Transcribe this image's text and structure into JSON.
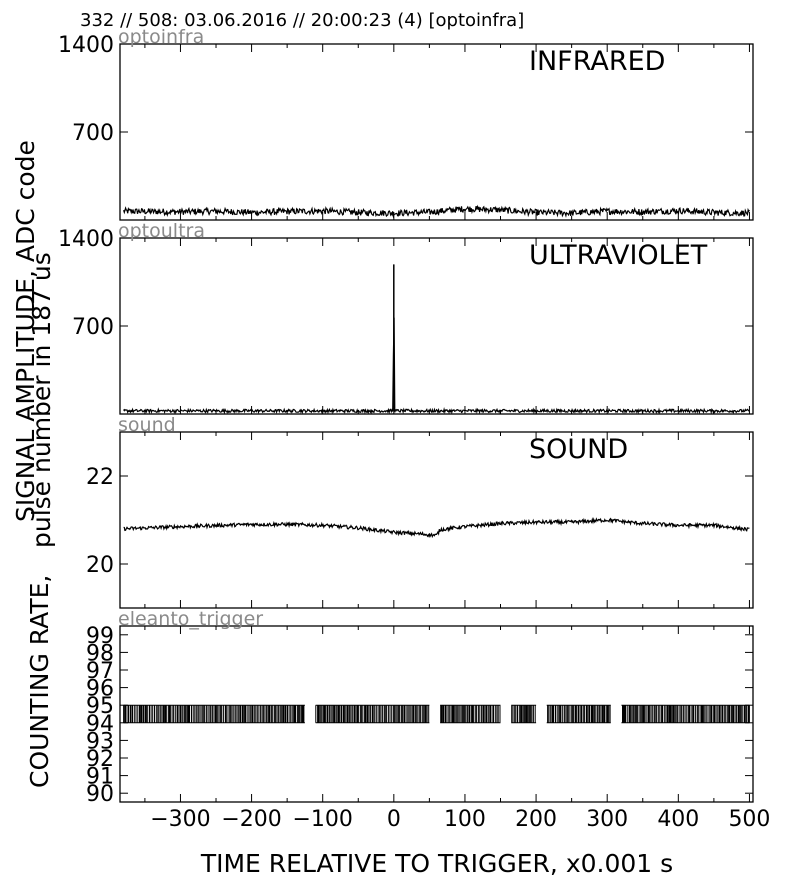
{
  "header": {
    "title": "332 // 508:   03.06.2016 // 20:00:23 (4)  [optoinfra]"
  },
  "axes": {
    "xlabel": "TIME RELATIVE TO TRIGGER,   x0.001 s",
    "ylabel_lines": [
      "SIGNAL AMPLITUDE,   ADC code",
      "pulse number in 187 us",
      "COUNTING RATE,"
    ]
  },
  "colors": {
    "line": "#000000",
    "channel_name": "#8a8a8a",
    "background": "#ffffff"
  },
  "chart_data": [
    {
      "type": "line",
      "channel": "optoinfra",
      "label": "INFRARED",
      "xlim": [
        -385,
        505
      ],
      "ylim": [
        0,
        1400
      ],
      "y_ticks": [
        1400,
        700
      ],
      "x_ticks": [
        -300,
        -200,
        -100,
        0,
        100,
        200,
        300,
        400,
        500
      ],
      "series": [
        {
          "x": [
            -380,
            -300,
            -250,
            -200,
            -150,
            -100,
            -50,
            0,
            50,
            100,
            150,
            200,
            250,
            300,
            350,
            400,
            450,
            500
          ],
          "y": [
            70,
            65,
            70,
            60,
            68,
            72,
            60,
            55,
            62,
            90,
            80,
            60,
            55,
            70,
            65,
            75,
            60,
            55
          ],
          "noise": 25
        }
      ]
    },
    {
      "type": "line",
      "channel": "optoultra",
      "label": "ULTRAVIOLET",
      "xlim": [
        -385,
        505
      ],
      "ylim": [
        0,
        1400
      ],
      "y_ticks": [
        1400,
        700
      ],
      "x_ticks": [
        -300,
        -200,
        -100,
        0,
        100,
        200,
        300,
        400,
        500
      ],
      "series": [
        {
          "x": [
            -380,
            -200,
            -1,
            0,
            1,
            200,
            500
          ],
          "y": [
            25,
            25,
            25,
            1190,
            25,
            25,
            25
          ],
          "noise": 12
        }
      ]
    },
    {
      "type": "line",
      "channel": "sound",
      "label": "SOUND",
      "xlim": [
        -385,
        505
      ],
      "ylim": [
        19,
        23
      ],
      "y_ticks": [
        22,
        20
      ],
      "x_ticks": [
        -300,
        -200,
        -100,
        0,
        100,
        200,
        300,
        400,
        500
      ],
      "series": [
        {
          "x": [
            -380,
            -300,
            -200,
            -150,
            -100,
            -50,
            0,
            40,
            60,
            65,
            100,
            150,
            200,
            250,
            300,
            350,
            400,
            450,
            500
          ],
          "y": [
            20.8,
            20.85,
            20.9,
            20.9,
            20.88,
            20.82,
            20.72,
            20.68,
            20.65,
            20.78,
            20.85,
            20.92,
            20.95,
            20.95,
            21.0,
            20.92,
            20.88,
            20.88,
            20.78
          ],
          "noise": 0.04
        }
      ]
    },
    {
      "type": "line",
      "channel": "eleanto_trigger",
      "label": "",
      "xlim": [
        -385,
        505
      ],
      "ylim": [
        89.5,
        99.5
      ],
      "y_ticks": [
        99,
        98,
        97,
        96,
        95,
        94,
        93,
        92,
        91,
        90
      ],
      "x_ticks": [
        -300,
        -200,
        -100,
        0,
        100,
        200,
        300,
        400,
        500
      ],
      "tick_labels_x": [
        "−300",
        "−200",
        "−100",
        "0",
        "100",
        "200",
        "300",
        "400",
        "500"
      ],
      "series": [
        {
          "x_range": [
            -380,
            500
          ],
          "levels": [
            94,
            95
          ],
          "gaps": [
            [
              -125,
              -110
            ],
            [
              50,
              65
            ],
            [
              150,
              165
            ],
            [
              200,
              215
            ],
            [
              305,
              320
            ]
          ]
        }
      ]
    }
  ]
}
